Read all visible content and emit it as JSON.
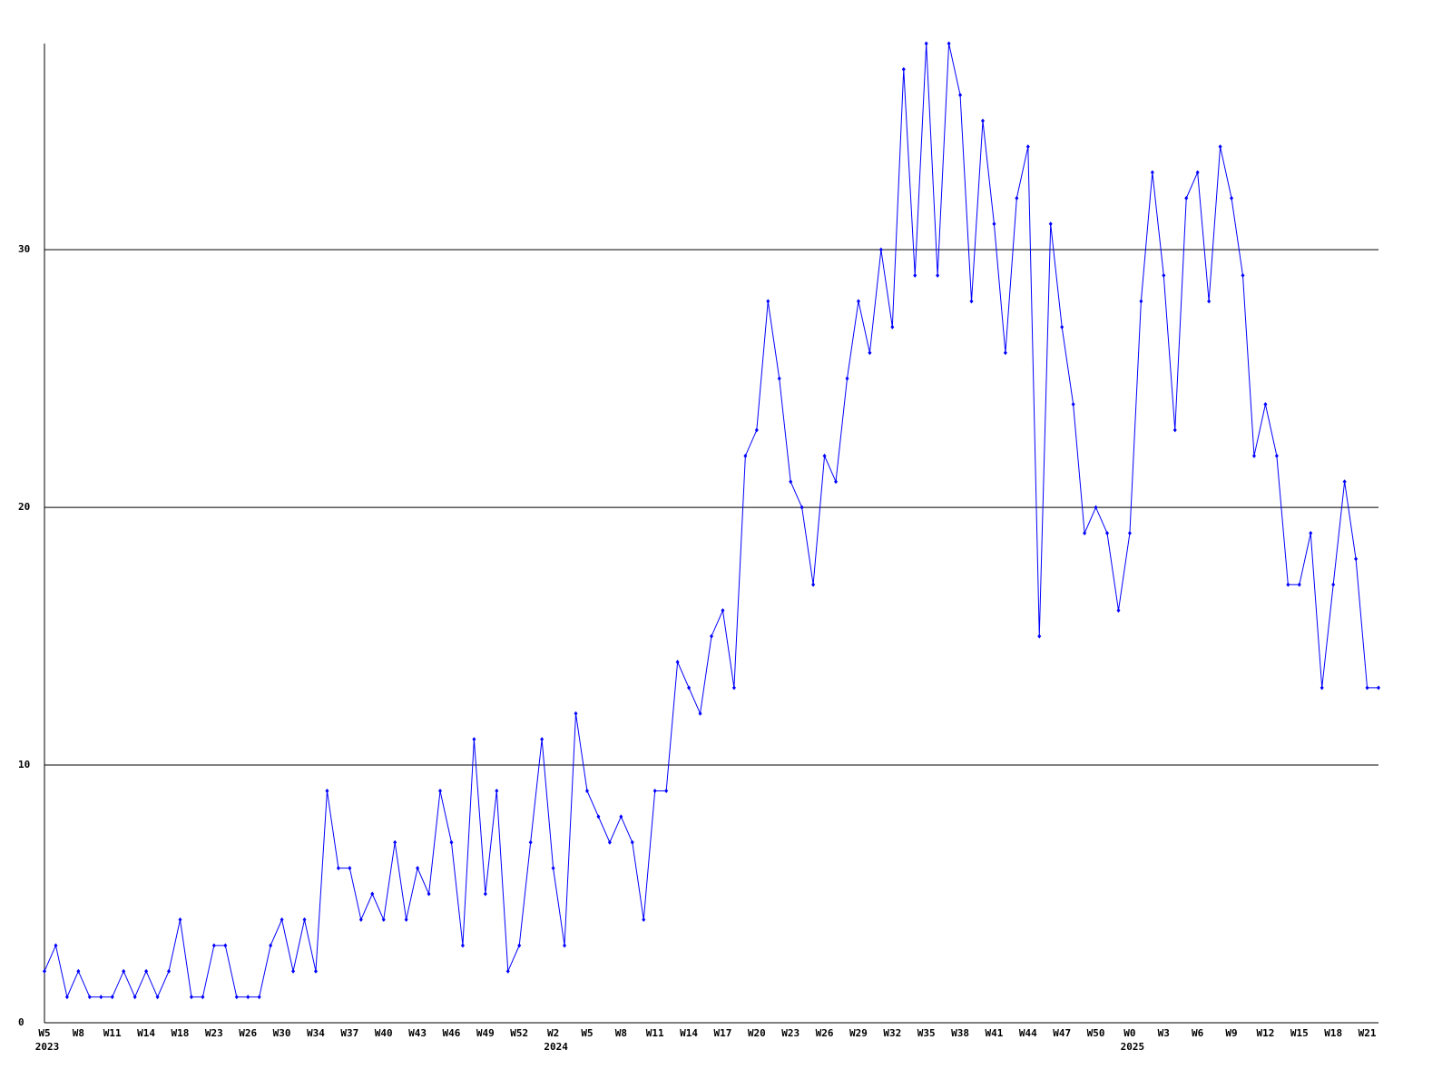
{
  "chart_data": {
    "type": "line",
    "categories": [
      "W5",
      null,
      null,
      "W8",
      null,
      null,
      "W11",
      null,
      null,
      "W14",
      null,
      null,
      "W18",
      null,
      null,
      "W23",
      null,
      null,
      "W26",
      null,
      null,
      "W30",
      null,
      null,
      "W34",
      null,
      null,
      "W37",
      null,
      null,
      "W40",
      null,
      null,
      "W43",
      null,
      null,
      "W46",
      null,
      null,
      "W49",
      null,
      null,
      "W52",
      null,
      null,
      "W2",
      null,
      null,
      "W5",
      null,
      null,
      "W8",
      null,
      null,
      "W11",
      null,
      null,
      "W14",
      null,
      null,
      "W17",
      null,
      null,
      "W20",
      null,
      null,
      "W23",
      null,
      null,
      "W26",
      null,
      null,
      "W29",
      null,
      null,
      "W32",
      null,
      null,
      "W35",
      null,
      null,
      "W38",
      null,
      null,
      "W41",
      null,
      null,
      "W44",
      null,
      null,
      "W47",
      null,
      null,
      "W50",
      null,
      null,
      "W0",
      null,
      null,
      "W3",
      null,
      null,
      "W6",
      null,
      null,
      "W9",
      null,
      null,
      "W12",
      null,
      null,
      "W15",
      null,
      null,
      "W18",
      null,
      null,
      "W21",
      null
    ],
    "year_labels": [
      "2023",
      null,
      null,
      null,
      null,
      null,
      null,
      null,
      null,
      null,
      null,
      null,
      null,
      null,
      null,
      null,
      null,
      null,
      null,
      null,
      null,
      null,
      null,
      null,
      null,
      null,
      null,
      null,
      null,
      null,
      null,
      null,
      null,
      null,
      null,
      null,
      null,
      null,
      null,
      null,
      null,
      null,
      null,
      null,
      null,
      "2024",
      null,
      null,
      null,
      null,
      null,
      null,
      null,
      null,
      null,
      null,
      null,
      null,
      null,
      null,
      null,
      null,
      null,
      null,
      null,
      null,
      null,
      null,
      null,
      null,
      null,
      null,
      null,
      null,
      null,
      null,
      null,
      null,
      null,
      null,
      null,
      null,
      null,
      null,
      null,
      null,
      null,
      null,
      null,
      null,
      null,
      null,
      null,
      null,
      null,
      null,
      "2025",
      null,
      null,
      null,
      null,
      null,
      null,
      null,
      null,
      null,
      null,
      null,
      null,
      null,
      null,
      null,
      null,
      null,
      null,
      null,
      null,
      null,
      null
    ],
    "series": [
      {
        "color": "#0000ff",
        "values": [
          2,
          3,
          1,
          2,
          1,
          1,
          1,
          2,
          1,
          2,
          1,
          2,
          4,
          1,
          1,
          3,
          3,
          1,
          1,
          1,
          3,
          4,
          2,
          4,
          2,
          9,
          6,
          6,
          4,
          5,
          4,
          7,
          4,
          6,
          5,
          9,
          7,
          3,
          11,
          5,
          9,
          2,
          3,
          7,
          11,
          6,
          3,
          12,
          9,
          8,
          7,
          8,
          7,
          4,
          9,
          9,
          14,
          13,
          12,
          15,
          16,
          13,
          22,
          23,
          28,
          25,
          21,
          20,
          17,
          22,
          21,
          25,
          28,
          26,
          30,
          27,
          37,
          29,
          38,
          29,
          38,
          36,
          28,
          35,
          31,
          26,
          32,
          34,
          15,
          31,
          27,
          24,
          19,
          20,
          19,
          16,
          19,
          28,
          33,
          29,
          23,
          32,
          33,
          28,
          34,
          32,
          29,
          22,
          24,
          22,
          17,
          17,
          19,
          13,
          17,
          21,
          18,
          13,
          13
        ]
      }
    ],
    "ylim": [
      0,
      38
    ],
    "yticks": [
      0,
      10,
      20,
      30
    ],
    "grid": true
  }
}
